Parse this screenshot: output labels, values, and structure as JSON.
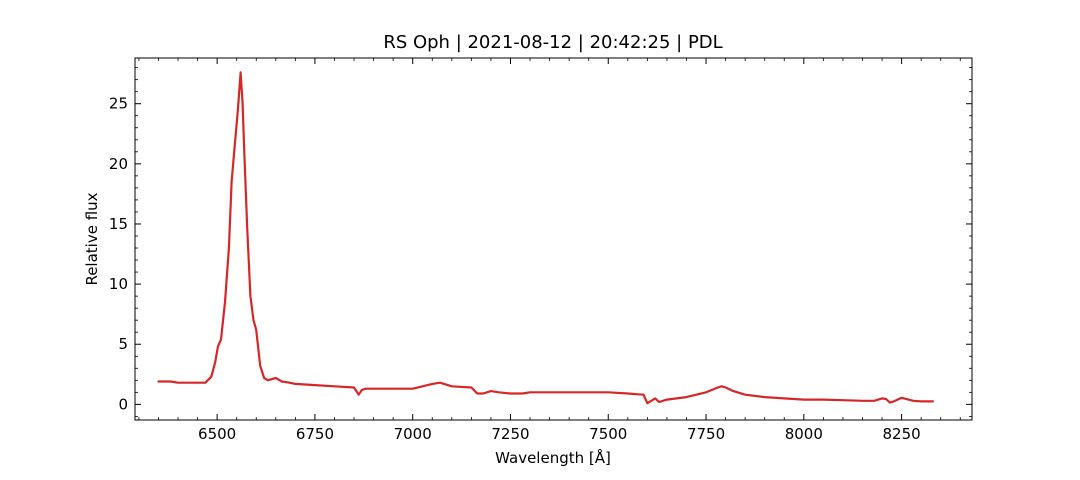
{
  "chart_data": {
    "type": "line",
    "title": "RS Oph | 2021-08-12 | 20:42:25 | PDL",
    "xlabel": "Wavelength [Å]",
    "ylabel": "Relative flux",
    "xlim": [
      6290,
      8430
    ],
    "ylim": [
      -1.3,
      28.8
    ],
    "xticks": [
      6500,
      6750,
      7000,
      7250,
      7500,
      7750,
      8000,
      8250
    ],
    "yticks": [
      0,
      5,
      10,
      15,
      20,
      25
    ],
    "grid": false,
    "line_color": "#d62728",
    "series": [
      {
        "x": [
          6350,
          6380,
          6400,
          6420,
          6450,
          6470,
          6485,
          6495,
          6502,
          6510,
          6520,
          6530,
          6537,
          6545,
          6553,
          6560,
          6565,
          6570,
          6577,
          6585,
          6593,
          6600,
          6610,
          6620,
          6630,
          6640,
          6650,
          6665,
          6685,
          6700,
          6750,
          6800,
          6850,
          6862,
          6870,
          6880,
          6900,
          6950,
          7000,
          7050,
          7070,
          7100,
          7150,
          7165,
          7180,
          7200,
          7220,
          7250,
          7280,
          7300,
          7350,
          7400,
          7450,
          7500,
          7550,
          7590,
          7600,
          7610,
          7620,
          7630,
          7650,
          7700,
          7750,
          7780,
          7790,
          7800,
          7820,
          7850,
          7900,
          7950,
          8000,
          8050,
          8100,
          8150,
          8180,
          8200,
          8210,
          8220,
          8230,
          8250,
          8280,
          8300,
          8330
        ],
        "y": [
          1.9,
          1.9,
          1.8,
          1.8,
          1.8,
          1.8,
          2.3,
          3.5,
          4.8,
          5.4,
          8.5,
          13.0,
          18.5,
          21.5,
          24.5,
          27.6,
          25.0,
          20.5,
          14.5,
          9.0,
          7.0,
          6.2,
          3.2,
          2.2,
          2.0,
          2.1,
          2.2,
          1.9,
          1.8,
          1.7,
          1.6,
          1.5,
          1.4,
          0.8,
          1.2,
          1.3,
          1.3,
          1.3,
          1.3,
          1.7,
          1.8,
          1.5,
          1.4,
          0.9,
          0.9,
          1.1,
          1.0,
          0.9,
          0.9,
          1.0,
          1.0,
          1.0,
          1.0,
          1.0,
          0.9,
          0.8,
          0.1,
          0.3,
          0.5,
          0.2,
          0.4,
          0.6,
          1.0,
          1.4,
          1.5,
          1.4,
          1.1,
          0.8,
          0.6,
          0.5,
          0.4,
          0.4,
          0.35,
          0.3,
          0.3,
          0.5,
          0.45,
          0.15,
          0.25,
          0.55,
          0.3,
          0.25,
          0.25
        ]
      }
    ]
  }
}
